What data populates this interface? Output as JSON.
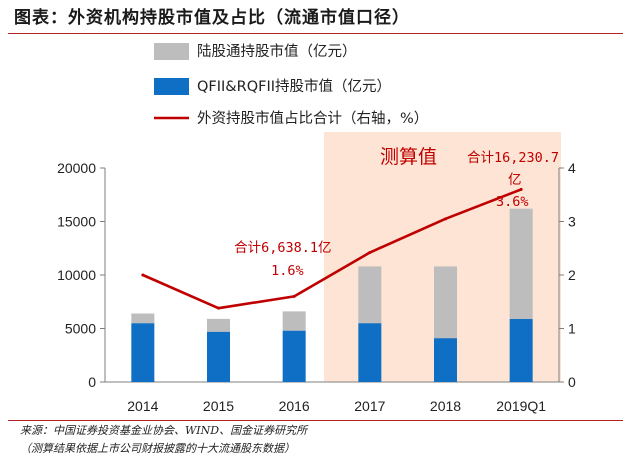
{
  "title": "图表：外资机构持股市值及占比（流通市值口径）",
  "source_line1": "来源：中国证券投资基金业协会、WIND、国金证券研究所",
  "source_line2": "（测算结果依据上市公司财报披露的十大流通股东数据）",
  "chart_data": {
    "type": "bar",
    "stacked": true,
    "categories": [
      "2014",
      "2015",
      "2016",
      "2017",
      "2018",
      "2019Q1"
    ],
    "series": [
      {
        "name": "QFII&RQFII持股市值（亿元）",
        "type": "bar",
        "axis": "left",
        "color": "#0e6fc4",
        "values": [
          5500,
          4700,
          4800,
          5500,
          4100,
          5900
        ]
      },
      {
        "name": "陆股通持股市值（亿元）",
        "type": "bar",
        "axis": "left",
        "color": "#bdbdbd",
        "values": [
          900,
          1200,
          1800,
          5300,
          6700,
          10300
        ]
      },
      {
        "name": "外资持股市值占比合计（右轴，%）",
        "type": "line",
        "axis": "right",
        "color": "#c00000",
        "values": [
          2.0,
          1.38,
          1.6,
          2.42,
          3.05,
          3.6
        ]
      }
    ],
    "left_axis": {
      "ylim": [
        0,
        20000
      ],
      "ticks": [
        "0",
        "5000",
        "10000",
        "15000",
        "20000"
      ]
    },
    "right_axis": {
      "ylim": [
        0,
        4
      ],
      "ticks": [
        "0",
        "1",
        "2",
        "3",
        "4"
      ]
    },
    "legend": {
      "position": "top",
      "order": [
        "陆股通持股市值（亿元）",
        "QFII&RQFII持股市值（亿元）",
        "外资持股市值占比合计（右轴，%）"
      ]
    },
    "estimate_region": {
      "from": "2017",
      "to": "2019Q1",
      "label": "测算值",
      "color": "#fde4d4"
    },
    "annotations": [
      {
        "category": "2016",
        "line1": "合计6,638.1亿",
        "line2": "1.6%"
      },
      {
        "category": "2019Q1",
        "line1": "合计16,230.7",
        "line2": "亿",
        "line3": "3.6%"
      }
    ],
    "grid": false
  }
}
